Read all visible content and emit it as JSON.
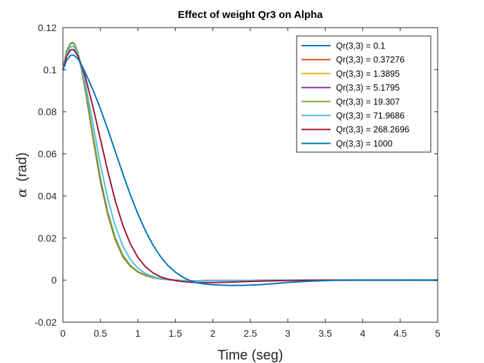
{
  "chart_data": {
    "type": "line",
    "title": "Effect of weight Qr3 on Alpha",
    "xlabel": "Time (seg)",
    "ylabel_symbol": "α",
    "ylabel_unit": "(rad)",
    "xlim": [
      0,
      5
    ],
    "ylim": [
      -0.02,
      0.12
    ],
    "xticks": [
      "0",
      "0.5",
      "1",
      "1.5",
      "2",
      "2.5",
      "3",
      "3.5",
      "4",
      "4.5",
      "5"
    ],
    "yticks": [
      "-0.02",
      "0",
      "0.02",
      "0.04",
      "0.06",
      "0.08",
      "0.1",
      "0.12"
    ],
    "grid": false,
    "legend_position": "top-right",
    "series": [
      {
        "name": "Qr(3,3) = 0.1",
        "color": "#0072BD",
        "x": [
          0,
          0.05,
          0.1,
          0.125,
          0.15,
          0.2,
          0.25,
          0.3,
          0.4,
          0.5,
          0.6,
          0.7,
          0.8,
          0.9,
          1.0,
          1.1,
          1.2,
          1.3,
          1.4,
          1.5,
          1.6,
          1.7,
          1.8,
          2.0,
          2.5,
          3.0,
          3.5,
          4.0,
          4.5,
          5.0
        ],
        "y": [
          0.1,
          0.109,
          0.1125,
          0.113,
          0.1125,
          0.108,
          0.1,
          0.09,
          0.068,
          0.047,
          0.031,
          0.019,
          0.011,
          0.0065,
          0.0038,
          0.0022,
          0.0012,
          0.0006,
          0.0002,
          0.0,
          -0.0002,
          -0.0003,
          -0.0003,
          -0.0002,
          -0.0001,
          0,
          0,
          0,
          0,
          0
        ]
      },
      {
        "name": "Qr(3,3) = 0.37276",
        "color": "#D95319",
        "x": [
          0,
          0.05,
          0.1,
          0.125,
          0.15,
          0.2,
          0.25,
          0.3,
          0.4,
          0.5,
          0.6,
          0.7,
          0.8,
          0.9,
          1.0,
          1.1,
          1.2,
          1.3,
          1.4,
          1.5,
          1.6,
          1.7,
          1.8,
          2.0,
          2.5,
          3.0,
          3.5,
          4.0,
          4.5,
          5.0
        ],
        "y": [
          0.1,
          0.109,
          0.1125,
          0.113,
          0.1125,
          0.108,
          0.1,
          0.09,
          0.068,
          0.047,
          0.031,
          0.019,
          0.011,
          0.0065,
          0.0038,
          0.0022,
          0.0012,
          0.0006,
          0.0002,
          0.0,
          -0.0002,
          -0.0003,
          -0.0003,
          -0.0002,
          -0.0001,
          0,
          0,
          0,
          0,
          0
        ]
      },
      {
        "name": "Qr(3,3) = 1.3895",
        "color": "#EDB120",
        "x": [
          0,
          0.05,
          0.1,
          0.125,
          0.15,
          0.2,
          0.25,
          0.3,
          0.4,
          0.5,
          0.6,
          0.7,
          0.8,
          0.9,
          1.0,
          1.1,
          1.2,
          1.3,
          1.4,
          1.5,
          1.6,
          1.7,
          1.8,
          2.0,
          2.5,
          3.0,
          3.5,
          4.0,
          4.5,
          5.0
        ],
        "y": [
          0.1,
          0.109,
          0.1125,
          0.113,
          0.1125,
          0.108,
          0.1,
          0.09,
          0.068,
          0.047,
          0.031,
          0.019,
          0.011,
          0.0065,
          0.0038,
          0.0022,
          0.0012,
          0.0006,
          0.0002,
          0.0,
          -0.0002,
          -0.0003,
          -0.0003,
          -0.0002,
          -0.0001,
          0,
          0,
          0,
          0,
          0
        ]
      },
      {
        "name": "Qr(3,3) = 5.1795",
        "color": "#7E2F8E",
        "x": [
          0,
          0.05,
          0.1,
          0.125,
          0.15,
          0.2,
          0.25,
          0.3,
          0.4,
          0.5,
          0.6,
          0.7,
          0.8,
          0.9,
          1.0,
          1.1,
          1.2,
          1.3,
          1.4,
          1.5,
          1.6,
          1.7,
          1.8,
          2.0,
          2.5,
          3.0,
          3.5,
          4.0,
          4.5,
          5.0
        ],
        "y": [
          0.1,
          0.109,
          0.1123,
          0.1128,
          0.1123,
          0.108,
          0.1,
          0.0905,
          0.0685,
          0.0475,
          0.0315,
          0.0195,
          0.0115,
          0.0068,
          0.004,
          0.0023,
          0.0013,
          0.0006,
          0.0002,
          0.0,
          -0.0002,
          -0.0003,
          -0.0003,
          -0.0002,
          -0.0001,
          0,
          0,
          0,
          0,
          0
        ]
      },
      {
        "name": "Qr(3,3) = 19.307",
        "color": "#77AC30",
        "x": [
          0,
          0.05,
          0.1,
          0.125,
          0.15,
          0.2,
          0.25,
          0.3,
          0.4,
          0.5,
          0.6,
          0.7,
          0.8,
          0.9,
          1.0,
          1.1,
          1.2,
          1.3,
          1.4,
          1.5,
          1.6,
          1.7,
          1.8,
          2.0,
          2.5,
          3.0,
          3.5,
          4.0,
          4.5,
          5.0
        ],
        "y": [
          0.1,
          0.109,
          0.1122,
          0.1127,
          0.1122,
          0.1082,
          0.1005,
          0.091,
          0.0695,
          0.0485,
          0.0322,
          0.02,
          0.0118,
          0.007,
          0.0041,
          0.0024,
          0.0013,
          0.0006,
          0.0002,
          0.0,
          -0.0002,
          -0.0003,
          -0.0003,
          -0.0002,
          -0.0001,
          0,
          0,
          0,
          0,
          0
        ]
      },
      {
        "name": "Qr(3,3) = 71.9686",
        "color": "#4DBEEE",
        "x": [
          0,
          0.05,
          0.1,
          0.125,
          0.15,
          0.2,
          0.25,
          0.3,
          0.4,
          0.5,
          0.6,
          0.7,
          0.8,
          0.9,
          1.0,
          1.1,
          1.2,
          1.3,
          1.4,
          1.5,
          1.6,
          1.7,
          1.8,
          2.0,
          2.5,
          3.0,
          3.5,
          4.0,
          4.5,
          5.0
        ],
        "y": [
          0.1,
          0.1075,
          0.1108,
          0.1112,
          0.1108,
          0.1075,
          0.1012,
          0.0935,
          0.0745,
          0.055,
          0.0385,
          0.0255,
          0.0162,
          0.0098,
          0.0057,
          0.0032,
          0.0017,
          0.0008,
          0.0003,
          0.0,
          -0.0002,
          -0.0003,
          -0.0004,
          -0.0003,
          -0.0001,
          0,
          0,
          0,
          0,
          0
        ]
      },
      {
        "name": "Qr(3,3) = 268.2696",
        "color": "#A2142F",
        "x": [
          0,
          0.05,
          0.1,
          0.125,
          0.15,
          0.2,
          0.25,
          0.3,
          0.4,
          0.5,
          0.6,
          0.7,
          0.8,
          0.9,
          1.0,
          1.1,
          1.2,
          1.3,
          1.4,
          1.5,
          1.6,
          1.7,
          1.8,
          2.0,
          2.2,
          2.5,
          3.0,
          3.5,
          4.0,
          4.5,
          5.0
        ],
        "y": [
          0.1,
          0.1065,
          0.1093,
          0.1096,
          0.1093,
          0.1065,
          0.102,
          0.0965,
          0.0825,
          0.067,
          0.0515,
          0.0375,
          0.026,
          0.0172,
          0.0108,
          0.0064,
          0.0035,
          0.0016,
          0.0005,
          -0.0002,
          -0.0007,
          -0.001,
          -0.0012,
          -0.0012,
          -0.001,
          -0.0006,
          -0.0002,
          0,
          0,
          0,
          0
        ]
      },
      {
        "name": "Qr(3,3) = 1000",
        "color": "#0072BD",
        "x": [
          0,
          0.05,
          0.1,
          0.125,
          0.15,
          0.2,
          0.25,
          0.3,
          0.4,
          0.5,
          0.6,
          0.7,
          0.8,
          0.9,
          1.0,
          1.1,
          1.2,
          1.3,
          1.4,
          1.5,
          1.6,
          1.7,
          1.8,
          1.9,
          2.0,
          2.2,
          2.4,
          2.6,
          2.8,
          3.0,
          3.3,
          3.6,
          4.0,
          4.5,
          5.0
        ],
        "y": [
          0.1,
          0.1045,
          0.1068,
          0.107,
          0.1068,
          0.1052,
          0.1022,
          0.0985,
          0.0905,
          0.0815,
          0.0715,
          0.061,
          0.0505,
          0.0405,
          0.0315,
          0.0235,
          0.0168,
          0.0113,
          0.007,
          0.0038,
          0.0014,
          -0.0003,
          -0.0013,
          -0.0019,
          -0.0022,
          -0.0025,
          -0.0025,
          -0.0022,
          -0.0017,
          -0.0011,
          -0.0005,
          -0.0001,
          0.0001,
          0.0001,
          0.0
        ]
      }
    ]
  }
}
